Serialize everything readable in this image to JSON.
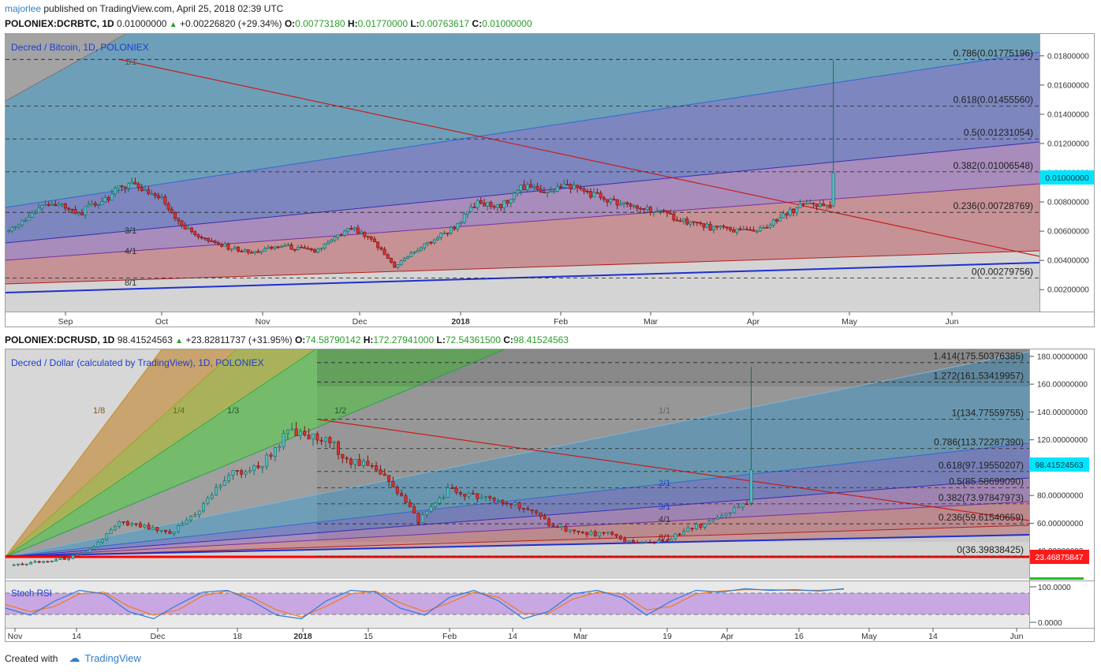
{
  "header": {
    "user": "majorlee",
    "published": "published on TradingView.com, April 25, 2018 02:39 UTC"
  },
  "top": {
    "symbol_line": "POLONIEX:DCRBTC, 1D",
    "last": "0.01000000",
    "change": "+0.00226820 (+29.34%)",
    "open_label": "O:",
    "open": "0.00773180",
    "high_label": "H:",
    "high": "0.01770000",
    "low_label": "L:",
    "low": "0.00763617",
    "close_label": "C:",
    "close": "0.01000000",
    "legend": "Decred / Bitcoin, 1D, POLONIEX",
    "price_badge": "0.01000000",
    "y_ticks": [
      "0.01800000",
      "0.01600000",
      "0.01400000",
      "0.01200000",
      "0.01000000",
      "0.00800000",
      "0.00600000",
      "0.00400000",
      "0.00200000"
    ],
    "x_ticks": [
      "Sep",
      "Oct",
      "Nov",
      "Dec",
      "2018",
      "Feb",
      "Mar",
      "Apr",
      "May",
      "Jun"
    ],
    "fib_labels": [
      "0.786(0.01775196)",
      "0.618(0.01455560)",
      "0.5(0.01231054)",
      "0.382(0.01006548)",
      "0.236(0.00728769)",
      "0(0.00279756)"
    ],
    "fan_labels": [
      "3/1",
      "4/1",
      "8/1",
      "1/1"
    ]
  },
  "bottom": {
    "symbol_line": "POLONIEX:DCRUSD, 1D",
    "last": "98.41524563",
    "change": "+23.82811737 (+31.95%)",
    "open_label": "O:",
    "open": "74.58790142",
    "high_label": "H:",
    "high": "172.27941000",
    "low_label": "L:",
    "low": "72.54361500",
    "close_label": "C:",
    "close": "98.41524563",
    "legend": "Decred / Dollar (calculated by TradingView), 1D, POLONIEX",
    "price_badge": "98.41524563",
    "red_badge": "23.46875847",
    "y_ticks": [
      "180.00000000",
      "160.00000000",
      "140.00000000",
      "120.00000000",
      "100.00000000",
      "80.00000000",
      "60.00000000",
      "40.00000000"
    ],
    "x_ticks": [
      "Nov",
      "14",
      "Dec",
      "18",
      "2018",
      "15",
      "Feb",
      "14",
      "Mar",
      "19",
      "Apr",
      "16",
      "May",
      "14",
      "Jun"
    ],
    "fib_labels": [
      "1.414(175.50376385)",
      "1.272(161.53419957)",
      "1(134.77559755)",
      "0.786(113.72287390)",
      "0.618(97.19550207)",
      "0.5(85.58699090)",
      "0.382(73.97847973)",
      "0.236(59.61540659)",
      "0(36.39838425)"
    ],
    "fan_labels": [
      "1/8",
      "1/4",
      "1/3",
      "1/2",
      "1/1",
      "2/1",
      "3/1",
      "4/1",
      "8/1"
    ]
  },
  "stoch": {
    "label": "Stoch RSI",
    "y_ticks": [
      "100.0000",
      "0.0000"
    ]
  },
  "footer": {
    "created_with": "Created with",
    "brand": "TradingView"
  },
  "chart_data": [
    {
      "type": "candlestick",
      "title": "Decred / Bitcoin, 1D, POLONIEX",
      "ylim": [
        0.0005,
        0.0195
      ],
      "x_range": [
        "2017-08-19",
        "2018-06-26"
      ],
      "series": [
        {
          "name": "DCRBTC",
          "dates": [
            "2017-08-20",
            "2017-09-01",
            "2017-09-10",
            "2017-09-20",
            "2017-09-25",
            "2017-10-05",
            "2017-10-12",
            "2017-10-20",
            "2017-11-01",
            "2017-11-10",
            "2017-11-20",
            "2017-12-01",
            "2017-12-08",
            "2017-12-14",
            "2017-12-20",
            "2018-01-01",
            "2018-01-08",
            "2018-01-15",
            "2018-01-20",
            "2018-01-28",
            "2018-02-05",
            "2018-02-12",
            "2018-02-20",
            "2018-03-01",
            "2018-03-10",
            "2018-03-20",
            "2018-04-01",
            "2018-04-08",
            "2018-04-15",
            "2018-04-20",
            "2018-04-24",
            "2018-04-25"
          ],
          "values": [
            0.006,
            0.008,
            0.0072,
            0.0085,
            0.0094,
            0.0082,
            0.0062,
            0.0052,
            0.0045,
            0.005,
            0.0046,
            0.0062,
            0.0052,
            0.0036,
            0.0046,
            0.0063,
            0.0079,
            0.0076,
            0.009,
            0.0088,
            0.0091,
            0.0085,
            0.0078,
            0.0075,
            0.0068,
            0.0062,
            0.006,
            0.0067,
            0.0078,
            0.0077,
            0.0077,
            0.01
          ]
        }
      ],
      "fib_levels": [
        {
          "ratio": 0.786,
          "value": 0.01775196
        },
        {
          "ratio": 0.618,
          "value": 0.0145556
        },
        {
          "ratio": 0.5,
          "value": 0.01231054
        },
        {
          "ratio": 0.382,
          "value": 0.01006548
        },
        {
          "ratio": 0.236,
          "value": 0.00728769
        },
        {
          "ratio": 0,
          "value": 0.00279756
        }
      ],
      "last_candle": {
        "open": 0.0077318,
        "high": 0.0177,
        "low": 0.00763617,
        "close": 0.01
      }
    },
    {
      "type": "candlestick",
      "title": "Decred / Dollar (calculated by TradingView), 1D, POLONIEX",
      "ylim": [
        20,
        185
      ],
      "x_range": [
        "2017-10-30",
        "2018-06-30"
      ],
      "series": [
        {
          "name": "DCRUSD",
          "dates": [
            "2017-11-01",
            "2017-11-10",
            "2017-11-18",
            "2017-11-26",
            "2017-12-01",
            "2017-12-08",
            "2017-12-15",
            "2017-12-22",
            "2017-12-29",
            "2018-01-05",
            "2018-01-10",
            "2018-01-15",
            "2018-01-20",
            "2018-01-28",
            "2018-02-05",
            "2018-02-12",
            "2018-02-20",
            "2018-03-01",
            "2018-03-08",
            "2018-03-15",
            "2018-03-22",
            "2018-03-29",
            "2018-04-05",
            "2018-04-12",
            "2018-04-18",
            "2018-04-24",
            "2018-04-25"
          ],
          "values": [
            30,
            33,
            38,
            60,
            58,
            52,
            70,
            95,
            100,
            125,
            122,
            118,
            105,
            96,
            62,
            84,
            78,
            73,
            60,
            53,
            52,
            45,
            48,
            58,
            64,
            75,
            98.41524563
          ]
        }
      ],
      "fib_levels": [
        {
          "ratio": 1.414,
          "value": 175.50376385
        },
        {
          "ratio": 1.272,
          "value": 161.53419957
        },
        {
          "ratio": 1,
          "value": 134.77559755
        },
        {
          "ratio": 0.786,
          "value": 113.7228739
        },
        {
          "ratio": 0.618,
          "value": 97.19550207
        },
        {
          "ratio": 0.5,
          "value": 85.5869909
        },
        {
          "ratio": 0.382,
          "value": 73.97847973
        },
        {
          "ratio": 0.236,
          "value": 59.61540659
        },
        {
          "ratio": 0,
          "value": 36.39838425
        }
      ],
      "support_level": 23.46875847,
      "last_candle": {
        "open": 74.58790142,
        "high": 172.27941,
        "low": 72.543615,
        "close": 98.41524563
      }
    },
    {
      "type": "line",
      "title": "Stoch RSI",
      "ylim": [
        0,
        100
      ],
      "x_range": [
        "2017-10-30",
        "2018-06-30"
      ],
      "series": [
        {
          "name": "K",
          "color": "#2f7bd8",
          "values": [
            40,
            20,
            60,
            90,
            80,
            30,
            10,
            50,
            85,
            90,
            60,
            20,
            10,
            60,
            90,
            85,
            40,
            20,
            70,
            90,
            60,
            10,
            30,
            80,
            90,
            70,
            20,
            60,
            90,
            85,
            95,
            90,
            92,
            88,
            95
          ]
        },
        {
          "name": "D",
          "color": "#ef7c22",
          "values": [
            50,
            30,
            45,
            80,
            85,
            45,
            20,
            35,
            75,
            88,
            70,
            35,
            15,
            45,
            80,
            88,
            55,
            30,
            55,
            85,
            70,
            25,
            25,
            65,
            85,
            80,
            35,
            45,
            80,
            88,
            92,
            92,
            90,
            90,
            93
          ]
        }
      ]
    }
  ],
  "colors": {
    "up": "#53b9c9",
    "down": "#d9312e",
    "up_border": "#1d6b57",
    "down_border": "#7a1212",
    "accent": "#2f80c8",
    "red_line": "#ff0000",
    "badge_cyan": "#00e5ff"
  }
}
